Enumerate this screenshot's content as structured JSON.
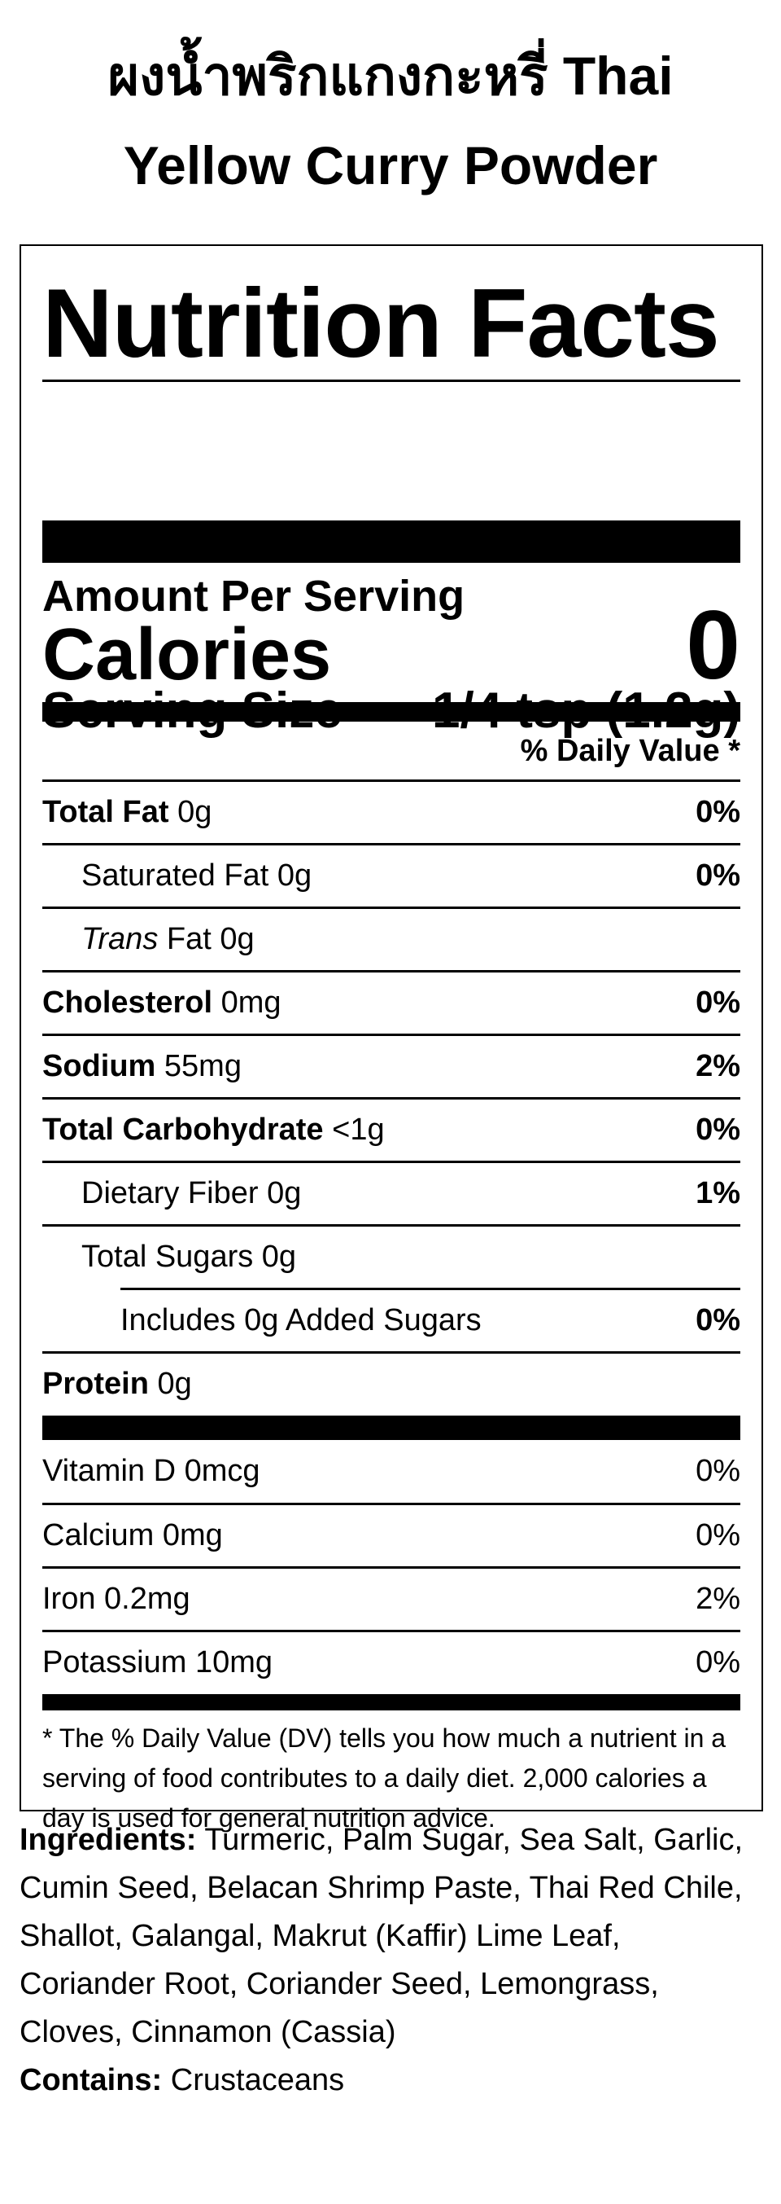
{
  "product": {
    "title_line1": "ผงน้ำพริกแกงกะหรี่ Thai",
    "title_line2": "Yellow Curry Powder"
  },
  "label": {
    "title": "Nutrition Facts",
    "serving_size_label": "Serving Size",
    "serving_size_value": "1/4 tsp (1.2g)",
    "amount_per_serving": "Amount Per Serving",
    "calories_label": "Calories",
    "calories_value": "0",
    "daily_value_header": "% Daily Value *",
    "nutrients": [
      {
        "name": "Total Fat",
        "amount": "0g",
        "dv": "0%"
      },
      {
        "name": "Saturated Fat",
        "amount": "0g",
        "dv": "0%"
      },
      {
        "name": "Trans",
        "name_suffix": "Fat",
        "amount": "0g",
        "dv": ""
      },
      {
        "name": "Cholesterol",
        "amount": "0mg",
        "dv": "0%"
      },
      {
        "name": "Sodium",
        "amount": "55mg",
        "dv": "2%"
      },
      {
        "name": "Total Carbohydrate",
        "amount": "<1g",
        "dv": "0%"
      },
      {
        "name": "Dietary Fiber",
        "amount": "0g",
        "dv": "1%"
      },
      {
        "name": "Total Sugars",
        "amount": "0g",
        "dv": ""
      },
      {
        "name": "Includes 0g Added Sugars",
        "amount": "",
        "dv": "0%"
      },
      {
        "name": "Protein",
        "amount": "0g",
        "dv": ""
      }
    ],
    "vitamins": [
      {
        "name": "Vitamin D",
        "amount": "0mcg",
        "dv": "0%"
      },
      {
        "name": "Calcium",
        "amount": "0mg",
        "dv": "0%"
      },
      {
        "name": "Iron",
        "amount": "0.2mg",
        "dv": "2%"
      },
      {
        "name": "Potassium",
        "amount": "10mg",
        "dv": "0%"
      }
    ],
    "footnote": "* The % Daily Value (DV) tells you how much a nutrient in a serving of food contributes to a daily diet. 2,000 calories a day is used for general nutrition advice."
  },
  "ingredients": {
    "label": "Ingredients:",
    "text": "Turmeric, Palm Sugar, Sea Salt, Garlic, Cumin Seed, Belacan Shrimp Paste, Thai Red Chile, Shallot, Galangal, Makrut (Kaffir) Lime Leaf, Coriander Root, Coriander Seed, Lemongrass, Cloves, Cinnamon (Cassia)",
    "contains_label": "Contains:",
    "contains_text": "Crustaceans"
  }
}
